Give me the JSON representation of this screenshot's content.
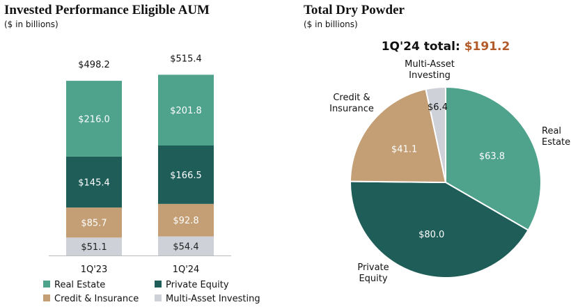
{
  "chart_data": [
    {
      "type": "bar",
      "stacked": true,
      "title": "Invested Performance Eligible AUM",
      "subtitle": "($ in billions)",
      "categories": [
        "1Q'23",
        "1Q'24"
      ],
      "series": [
        {
          "name": "Multi-Asset Investing",
          "color": "#cfd1d9",
          "values": [
            51.1,
            54.4
          ],
          "labels": [
            "$51.1",
            "$54.4"
          ],
          "label_color": "#222222"
        },
        {
          "name": "Credit & Insurance",
          "color": "#c49e74",
          "values": [
            85.7,
            92.8
          ],
          "labels": [
            "$85.7",
            "$92.8"
          ],
          "label_color": "#ffffff"
        },
        {
          "name": "Private Equity",
          "color": "#1f5d58",
          "values": [
            145.4,
            166.5
          ],
          "labels": [
            "$145.4",
            "$166.5"
          ],
          "label_color": "#ffffff"
        },
        {
          "name": "Real Estate",
          "color": "#4fa38c",
          "values": [
            216.0,
            201.8
          ],
          "labels": [
            "$216.0",
            "$201.8"
          ],
          "label_color": "#ffffff"
        }
      ],
      "totals": [
        "$498.2",
        "$515.4"
      ],
      "ylim": [
        0,
        550
      ],
      "legend": [
        {
          "name": "Real Estate",
          "color": "#4fa38c"
        },
        {
          "name": "Private Equity",
          "color": "#1f5d58"
        },
        {
          "name": "Credit & Insurance",
          "color": "#c49e74"
        },
        {
          "name": "Multi-Asset Investing",
          "color": "#cfd1d9"
        }
      ]
    },
    {
      "type": "pie",
      "title": "Total Dry Powder",
      "subtitle": "($ in billions)",
      "total_label": "1Q'24 total: ",
      "total_value": "$191.2",
      "total_value_color": "#b35a2a",
      "slices": [
        {
          "name": "Real Estate",
          "name_lines": [
            "Real",
            "Estate"
          ],
          "value": 63.8,
          "label": "$63.8",
          "color": "#4fa38c",
          "label_color": "#ffffff"
        },
        {
          "name": "Private Equity",
          "name_lines": [
            "Private",
            "Equity"
          ],
          "value": 80.0,
          "label": "$80.0",
          "color": "#1f5d58",
          "label_color": "#ffffff"
        },
        {
          "name": "Credit & Insurance",
          "name_lines": [
            "Credit &",
            "Insurance"
          ],
          "value": 41.1,
          "label": "$41.1",
          "color": "#c49e74",
          "label_color": "#ffffff"
        },
        {
          "name": "Multi-Asset Investing",
          "name_lines": [
            "Multi-Asset",
            "Investing"
          ],
          "value": 6.4,
          "label": "$6.4",
          "color": "#cfd1d9",
          "label_color": "#111111"
        }
      ]
    }
  ]
}
